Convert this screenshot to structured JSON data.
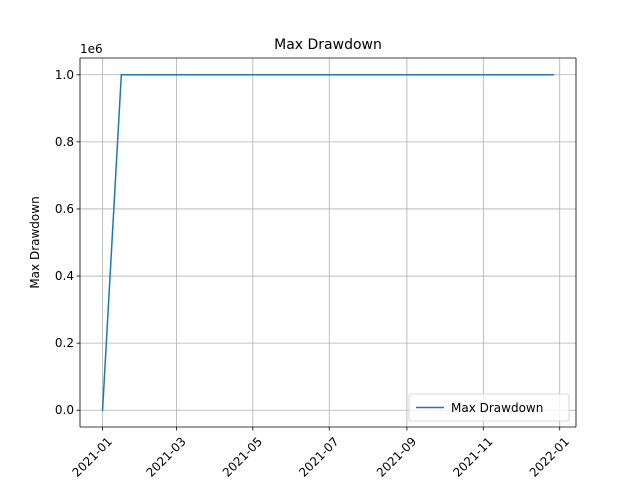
{
  "chart_data": {
    "type": "line",
    "title": "Max Drawdown",
    "xlabel": "",
    "ylabel": "Max Drawdown",
    "y_offset_label": "1e6",
    "x_is_date": true,
    "xlim": [
      "2020-12-14",
      "2022-01-14"
    ],
    "ylim": [
      -50000,
      1050000
    ],
    "x_ticks": [
      "2021-01",
      "2021-03",
      "2021-05",
      "2021-07",
      "2021-09",
      "2021-11",
      "2022-01"
    ],
    "x_tick_labels": [
      "2021-01",
      "2021-03",
      "2021-05",
      "2021-07",
      "2021-09",
      "2021-11",
      "2022-01"
    ],
    "y_ticks": [
      0,
      200000,
      400000,
      600000,
      800000,
      1000000
    ],
    "y_tick_labels": [
      "0.0",
      "0.2",
      "0.4",
      "0.6",
      "0.8",
      "1.0"
    ],
    "grid": true,
    "legend": {
      "position": "lower right",
      "entries": [
        "Max Drawdown"
      ]
    },
    "series": [
      {
        "name": "Max Drawdown",
        "color": "#1f77b4",
        "x": [
          "2021-01-01",
          "2021-01-16",
          "2021-12-27"
        ],
        "y": [
          0,
          1000000,
          1000000
        ]
      }
    ]
  }
}
